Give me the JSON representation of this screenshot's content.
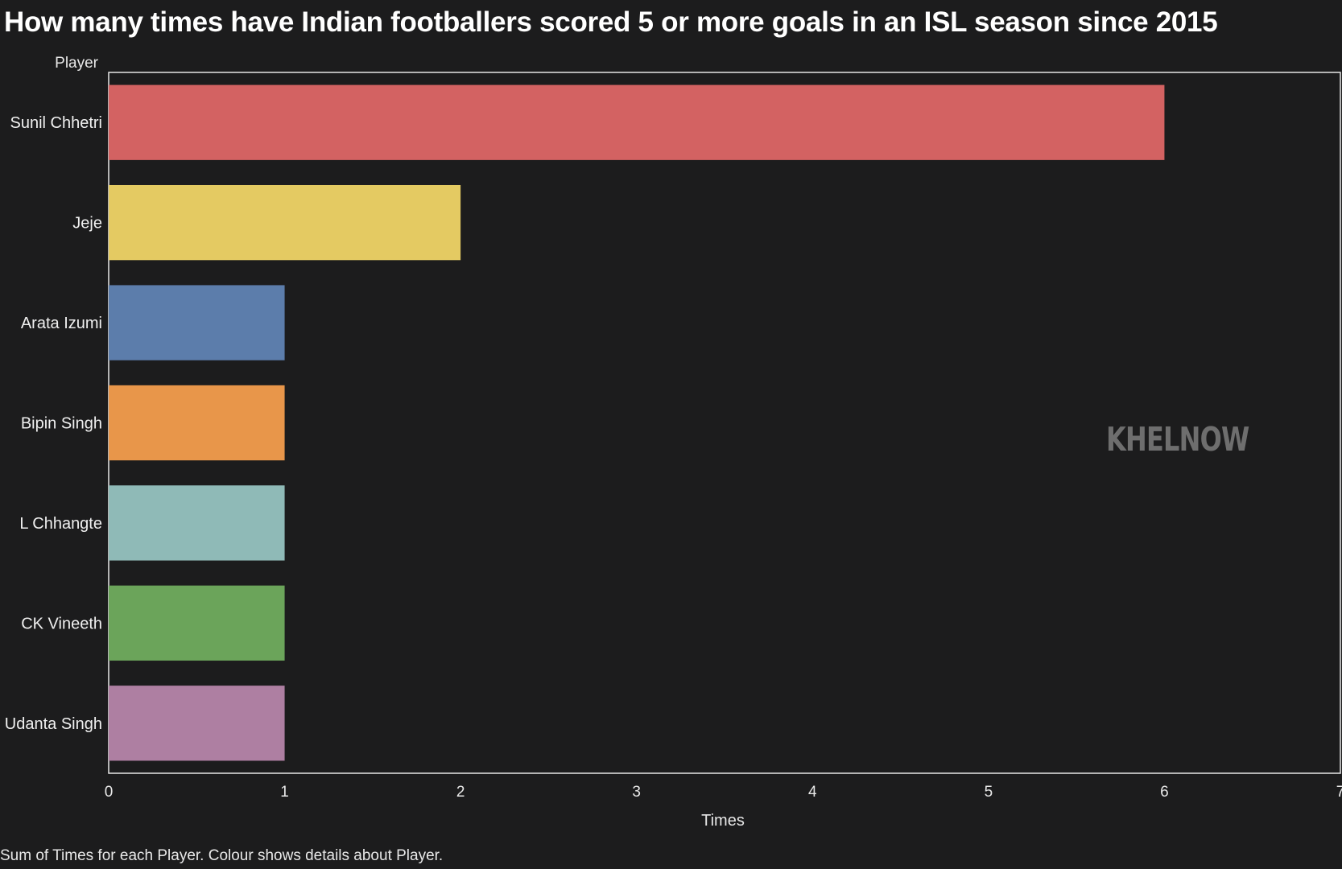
{
  "title": "How many times have Indian footballers scored 5 or more goals in an ISL season since 2015",
  "caption": "Sum of Times for each Player.  Colour shows details about Player.",
  "watermark": "KHELNOW",
  "chart_data": {
    "type": "bar",
    "orientation": "horizontal",
    "title": "How many times have Indian footballers scored 5 or more goals in an ISL season since 2015",
    "ylabel": "Player",
    "xlabel": "Times",
    "categories": [
      "Sunil Chhetri",
      "Jeje",
      "Arata Izumi",
      "Bipin Singh",
      "L Chhangte",
      "CK Vineeth",
      "Udanta Singh"
    ],
    "values": [
      6,
      2,
      1,
      1,
      1,
      1,
      1
    ],
    "colors": [
      "#d36262",
      "#e4ca62",
      "#5c7dab",
      "#e8964a",
      "#8fbab7",
      "#6ba45a",
      "#ae7fa2"
    ],
    "xlim": [
      0,
      7
    ],
    "xticks": [
      "0",
      "1",
      "2",
      "3",
      "4",
      "5",
      "6",
      "7"
    ],
    "grid": false,
    "legend": "none"
  }
}
